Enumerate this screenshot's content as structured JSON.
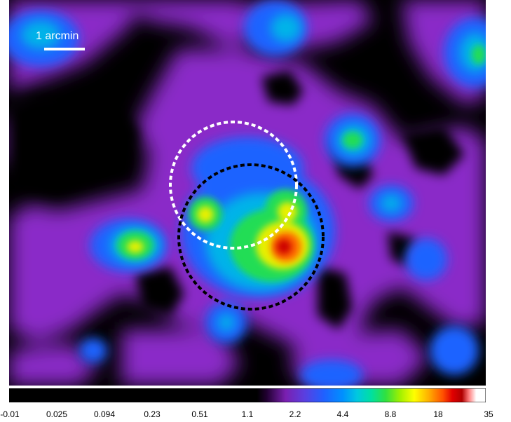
{
  "scale_bar": {
    "label": "1 arcmin",
    "color": "#ffffff"
  },
  "regions": [
    {
      "name": "source-region-white",
      "color": "#ffffff",
      "style": "dashed"
    },
    {
      "name": "source-region-black",
      "color": "#000000",
      "style": "dashed"
    }
  ],
  "colorbar": {
    "scale": "log",
    "tick_labels": [
      "-0.01",
      "0.025",
      "0.094",
      "0.23",
      "0.51",
      "1.1",
      "2.2",
      "4.4",
      "8.8",
      "18",
      "35"
    ],
    "gradient_stops": [
      {
        "offset": "0%",
        "color": "#000000"
      },
      {
        "offset": "52%",
        "color": "#000000"
      },
      {
        "offset": "54%",
        "color": "#200030"
      },
      {
        "offset": "58%",
        "color": "#7a1fb0"
      },
      {
        "offset": "62%",
        "color": "#5a3fe0"
      },
      {
        "offset": "66%",
        "color": "#2060ff"
      },
      {
        "offset": "70%",
        "color": "#0090ff"
      },
      {
        "offset": "73%",
        "color": "#00c8e0"
      },
      {
        "offset": "76%",
        "color": "#00e0a0"
      },
      {
        "offset": "79%",
        "color": "#30e040"
      },
      {
        "offset": "82%",
        "color": "#a0f000"
      },
      {
        "offset": "85%",
        "color": "#ffff00"
      },
      {
        "offset": "88%",
        "color": "#ffb000"
      },
      {
        "offset": "91%",
        "color": "#ff5000"
      },
      {
        "offset": "93%",
        "color": "#e00000"
      },
      {
        "offset": "95%",
        "color": "#b00000"
      },
      {
        "offset": "96.5%",
        "color": "#ff8080"
      },
      {
        "offset": "98%",
        "color": "#ffffff"
      },
      {
        "offset": "100%",
        "color": "#ffffff"
      }
    ]
  }
}
